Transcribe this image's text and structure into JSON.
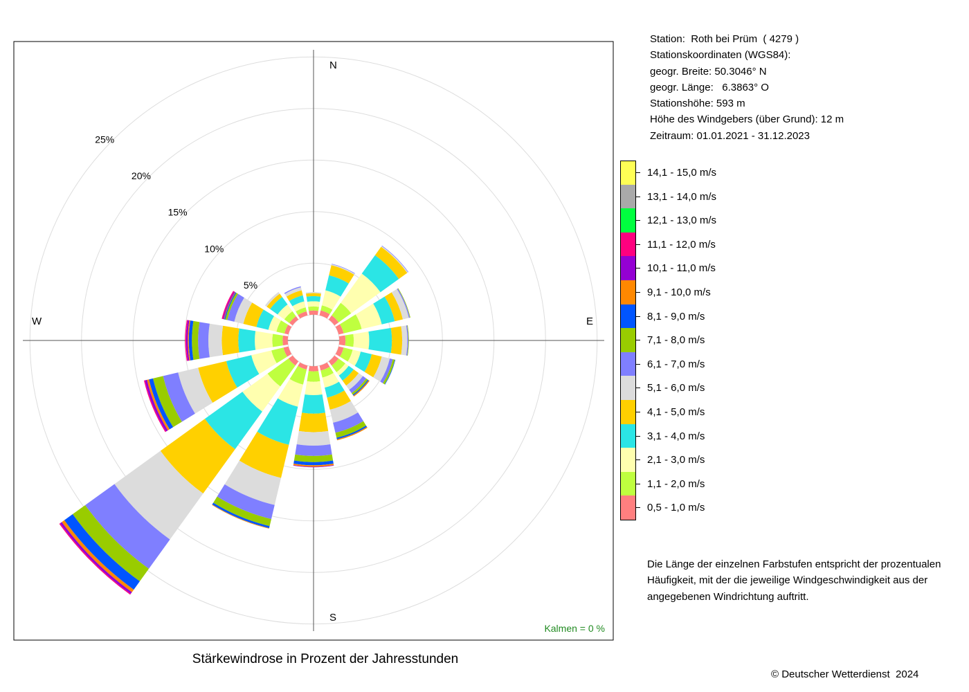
{
  "station": {
    "line_station": "Station:  Roth bei Prüm  ( 4279 )",
    "line_coords": "Stationskoordinaten (WGS84):",
    "line_lat": "geogr. Breite: 50.3046° N",
    "line_lon": "geogr. Länge:   6.3863° O",
    "line_height": "Stationshöhe: 593 m",
    "line_anemometer": "Höhe des Windgebers (über Grund): 12 m",
    "line_period": "Zeitraum: 01.01.2021 - 31.12.2023"
  },
  "caption": "Stärkewindrose in Prozent der Jahresstunden",
  "copyright": "© Deutscher Wetterdienst  2024",
  "note": "Die Länge der einzelnen Farbstufen entspricht der prozentualen Häufigkeit, mit der die jeweilige Windgeschwindigkeit aus der angegebenen Windrichtung auftritt.",
  "calm_label": "Kalmen  =  0 %",
  "chart_data": {
    "type": "windrose",
    "directions": [
      "N",
      "NNE",
      "NE",
      "ENE",
      "E",
      "ESE",
      "SE",
      "SSE",
      "S",
      "SSW",
      "SW",
      "WSW",
      "W",
      "WNW",
      "NW",
      "NNW"
    ],
    "direction_angles": [
      0,
      22.5,
      45,
      67.5,
      90,
      112.5,
      135,
      157.5,
      180,
      202.5,
      225,
      247.5,
      270,
      292.5,
      315,
      337.5
    ],
    "compass_labels": [
      "N",
      "E",
      "S",
      "W"
    ],
    "ring_labels": [
      "5%",
      "10%",
      "15%",
      "20%",
      "25%"
    ],
    "ring_values": [
      5,
      10,
      15,
      20,
      25
    ],
    "max_percent": 25,
    "inner_offset_percent": 2.5,
    "speed_classes": [
      {
        "label": "0,5 - 1,0 m/s",
        "color": "#FF7F7F"
      },
      {
        "label": "1,1 - 2,0 m/s",
        "color": "#BFFF3F"
      },
      {
        "label": "2,1 - 3,0 m/s",
        "color": "#FFFFAF"
      },
      {
        "label": "3,1 - 4,0 m/s",
        "color": "#2BE5E5"
      },
      {
        "label": "4,1 - 5,0 m/s",
        "color": "#FFD000"
      },
      {
        "label": "5,1 - 6,0 m/s",
        "color": "#DCDCDC"
      },
      {
        "label": "6,1 - 7,0 m/s",
        "color": "#7F7FFF"
      },
      {
        "label": "7,1 - 8,0 m/s",
        "color": "#99CC00"
      },
      {
        "label": "8,1 - 9,0 m/s",
        "color": "#0055FF"
      },
      {
        "label": "9,1 - 10,0 m/s",
        "color": "#FF8800"
      },
      {
        "label": "10,1 - 11,0 m/s",
        "color": "#9400D3"
      },
      {
        "label": "11,1 - 12,0 m/s",
        "color": "#FF007F"
      },
      {
        "label": "12,1 - 13,0 m/s",
        "color": "#00FF3F"
      },
      {
        "label": "13,1 - 14,0 m/s",
        "color": "#A9A9A9"
      },
      {
        "label": "14,1 - 15,0 m/s",
        "color": "#FFFF55"
      }
    ],
    "values": [
      [
        0.4,
        0.4,
        0.5,
        0.5,
        0.3,
        0.1,
        0,
        0,
        0,
        0,
        0,
        0,
        0,
        0,
        0
      ],
      [
        0.5,
        0.5,
        1.5,
        1.5,
        1.0,
        0.1,
        0.05,
        0,
        0,
        0,
        0,
        0,
        0,
        0,
        0
      ],
      [
        0.5,
        1.5,
        3.5,
        2.2,
        1.0,
        0.1,
        0.05,
        0,
        0,
        0,
        0,
        0,
        0,
        0,
        0
      ],
      [
        0.5,
        1.8,
        2.0,
        1.3,
        0.8,
        0.6,
        0.1,
        0.05,
        0,
        0,
        0,
        0,
        0,
        0,
        0
      ],
      [
        0.6,
        0.8,
        1.5,
        2.2,
        1.0,
        0.5,
        0.1,
        0.05,
        0,
        0,
        0,
        0,
        0,
        0,
        0
      ],
      [
        0.5,
        0.9,
        0.8,
        1.1,
        1.0,
        0.8,
        0.3,
        0.2,
        0.05,
        0,
        0,
        0,
        0,
        0,
        0
      ],
      [
        0.5,
        0.8,
        0.4,
        0.6,
        0.6,
        0.5,
        0.4,
        0.2,
        0.1,
        0.1,
        0,
        0,
        0,
        0,
        0
      ],
      [
        0.5,
        0.7,
        1.0,
        1.0,
        1.2,
        1.3,
        1.0,
        0.5,
        0.15,
        0.1,
        0,
        0,
        0,
        0,
        0
      ],
      [
        0.5,
        1.0,
        1.3,
        1.8,
        1.8,
        1.3,
        1.0,
        0.6,
        0.3,
        0.15,
        0.05,
        0,
        0,
        0,
        0
      ],
      [
        0.4,
        1.5,
        2.2,
        3.8,
        3.3,
        2.7,
        1.4,
        0.7,
        0.2,
        0.05,
        0,
        0,
        0,
        0,
        0
      ],
      [
        0.5,
        2.5,
        3.0,
        4.5,
        5.3,
        5.5,
        3.5,
        1.5,
        1.0,
        0.3,
        0.2,
        0.1,
        0,
        0,
        0
      ],
      [
        0.5,
        1.2,
        2.0,
        2.5,
        2.8,
        2.0,
        1.5,
        1.0,
        0.4,
        0.2,
        0.2,
        0.1,
        0,
        0,
        0
      ],
      [
        0.5,
        1.0,
        1.7,
        1.6,
        1.6,
        1.3,
        1.0,
        0.6,
        0.3,
        0.1,
        0.15,
        0.1,
        0,
        0,
        0
      ],
      [
        0.4,
        0.8,
        0.8,
        1.2,
        1.3,
        0.9,
        0.7,
        0.2,
        0.1,
        0.05,
        0.1,
        0.1,
        0,
        0,
        0
      ],
      [
        0.4,
        0.6,
        0.8,
        0.9,
        0.4,
        0.2,
        0,
        0,
        0,
        0,
        0,
        0,
        0,
        0,
        0
      ],
      [
        0.4,
        0.4,
        0.6,
        0.6,
        0.5,
        0.3,
        0.1,
        0,
        0,
        0,
        0,
        0,
        0,
        0,
        0
      ]
    ]
  }
}
